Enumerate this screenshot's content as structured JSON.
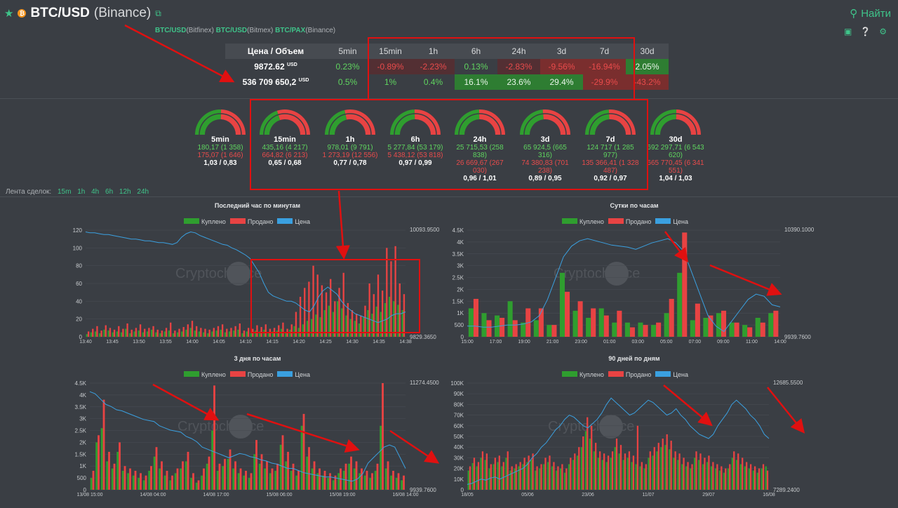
{
  "header": {
    "pair": "BTC/USD",
    "exchange": "(Binance)",
    "coin_glyph": "₿",
    "search_label": "Найти",
    "links": [
      {
        "pair": "BTC/USD",
        "exchange": "(Bitfinex)"
      },
      {
        "pair": "BTC/USD",
        "exchange": "(Bitmex)"
      },
      {
        "pair": "BTC/PAX",
        "exchange": "(Binance)"
      }
    ]
  },
  "stats": {
    "label_header": "Цена / Объем",
    "periods": [
      "5min",
      "15min",
      "1h",
      "6h",
      "24h",
      "3d",
      "7d",
      "30d"
    ],
    "price": "9872.62",
    "price_unit": "USD",
    "volume": "536 709 650,2",
    "volume_unit": "USD",
    "price_changes": [
      "0.23%",
      "-0.89%",
      "-2.23%",
      "0.13%",
      "-2.83%",
      "-9.56%",
      "-16.94%",
      "2.05%"
    ],
    "volume_changes": [
      "0.5%",
      "1%",
      "0.4%",
      "16.1%",
      "23.6%",
      "29.4%",
      "-29.9%",
      "-43.2%"
    ]
  },
  "gauges": [
    {
      "label": "5min",
      "buy": "180,17 (1 358)",
      "sell": "175,07 (1 646)",
      "ratio": "1,03 / 0,83",
      "buy_share": 0.51
    },
    {
      "label": "15min",
      "buy": "435,16 (4 217)",
      "sell": "664,82 (6 213)",
      "ratio": "0,65 / 0,68",
      "buy_share": 0.4
    },
    {
      "label": "1h",
      "buy": "978,01 (9 791)",
      "sell": "1 273,19 (12 556)",
      "ratio": "0,77 / 0,78",
      "buy_share": 0.43
    },
    {
      "label": "6h",
      "buy": "5 277,84 (53 179)",
      "sell": "5 438,12 (53 818)",
      "ratio": "0,97 / 0,99",
      "buy_share": 0.49
    },
    {
      "label": "24h",
      "buy": "25 715,53 (258 838)",
      "sell": "26 669,67 (267 030)",
      "ratio": "0,96 / 1,01",
      "buy_share": 0.49
    },
    {
      "label": "3d",
      "buy": "65 924,5 (665 316)",
      "sell": "74 380,83 (701 238)",
      "ratio": "0,89 / 0,95",
      "buy_share": 0.47
    },
    {
      "label": "7d",
      "buy": "124 717 (1 285 977)",
      "sell": "135 366,41 (1 328 487)",
      "ratio": "0,92 / 0,97",
      "buy_share": 0.48
    },
    {
      "label": "30d",
      "buy": "692 297,71 (6 543 620)",
      "sell": "665 770,45 (6 341 551)",
      "ratio": "1,04 / 1,03",
      "buy_share": 0.51
    }
  ],
  "feed": {
    "label": "Лента сделок:",
    "options": [
      "15m",
      "1h",
      "4h",
      "6h",
      "12h",
      "24h"
    ]
  },
  "legend": {
    "bought": "Куплено",
    "sold": "Продано",
    "price": "Цена"
  },
  "colors": {
    "bought": "#2f9e2f",
    "sold": "#e84343",
    "price": "#3aa0e0",
    "accent": "#3fc48a",
    "annotation": "#e01010"
  },
  "watermark": "Cryptochance",
  "chart_data": [
    {
      "type": "bar",
      "title": "Последний час по минутам",
      "yticks": [
        "0",
        "20",
        "40",
        "60",
        "80",
        "100",
        "120"
      ],
      "ylim": [
        0,
        120
      ],
      "price_top": "10093.9500",
      "price_bottom": "9829.3650",
      "xticks": [
        "13:40",
        "13:45",
        "13:50",
        "13:55",
        "14:00",
        "14:05",
        "14:10",
        "14:15",
        "14:20",
        "14:25",
        "14:30",
        "14:35",
        "14:38"
      ],
      "bought": [
        3,
        5,
        6,
        4,
        8,
        7,
        5,
        6,
        5,
        9,
        4,
        6,
        7,
        5,
        6,
        8,
        5,
        4,
        6,
        7,
        4,
        5,
        6,
        8,
        10,
        7,
        6,
        5,
        4,
        6,
        7,
        8,
        5,
        6,
        7,
        8,
        4,
        6,
        5,
        7,
        6,
        8,
        5,
        6,
        7,
        9,
        5,
        8,
        12,
        10,
        14,
        18,
        20,
        25,
        22,
        30,
        35,
        28,
        40,
        32,
        24,
        20,
        18,
        15,
        22,
        30,
        26,
        34,
        28,
        38,
        45,
        40,
        36,
        30
      ],
      "sold": [
        6,
        9,
        12,
        7,
        13,
        10,
        8,
        12,
        9,
        15,
        8,
        10,
        14,
        9,
        10,
        12,
        8,
        7,
        10,
        16,
        7,
        9,
        11,
        14,
        18,
        12,
        10,
        9,
        8,
        10,
        12,
        14,
        9,
        10,
        12,
        15,
        7,
        10,
        9,
        13,
        11,
        14,
        9,
        10,
        13,
        16,
        9,
        14,
        28,
        45,
        55,
        62,
        80,
        70,
        58,
        50,
        65,
        40,
        55,
        72,
        38,
        30,
        26,
        24,
        35,
        60,
        48,
        70,
        52,
        100,
        85,
        102,
        60,
        48
      ],
      "price": [
        118,
        117,
        117,
        116,
        115,
        115,
        114,
        113,
        112,
        111,
        110,
        110,
        109,
        108,
        108,
        107,
        106,
        106,
        105,
        104,
        106,
        112,
        116,
        118,
        117,
        114,
        112,
        110,
        108,
        106,
        104,
        103,
        100,
        98,
        95,
        92,
        88,
        80,
        72,
        60,
        50,
        46,
        44,
        42,
        40,
        40,
        38,
        34,
        30,
        28,
        35,
        45,
        52,
        56,
        52,
        48,
        40,
        34,
        30,
        26,
        24,
        22,
        20,
        18,
        16,
        18,
        20,
        24,
        26,
        26,
        28
      ],
      "price_max": 120
    },
    {
      "type": "bar",
      "title": "Сутки по часам",
      "yticks": [
        "0",
        "500",
        "1K",
        "1.5K",
        "2K",
        "2.5K",
        "3K",
        "3.5K",
        "4K",
        "4.5K"
      ],
      "ylim": [
        0,
        4500
      ],
      "price_top": "10390.1000",
      "price_bottom": "9939.7600",
      "xticks": [
        "15:00",
        "17:00",
        "19:00",
        "21:00",
        "23:00",
        "01:00",
        "03:00",
        "05:00",
        "07:00",
        "09:00",
        "11:00",
        "14:00"
      ],
      "bought": [
        1200,
        1000,
        900,
        1500,
        600,
        700,
        500,
        2700,
        1100,
        800,
        1200,
        600,
        600,
        600,
        500,
        1000,
        2700,
        700,
        800,
        1000,
        600,
        500,
        800,
        1000
      ],
      "sold": [
        1600,
        700,
        800,
        700,
        1200,
        1200,
        500,
        1900,
        1500,
        1200,
        900,
        1100,
        400,
        500,
        600,
        1600,
        4400,
        1400,
        900,
        1100,
        600,
        400,
        600,
        1100
      ],
      "price": [
        10,
        10,
        9,
        9,
        10,
        11,
        11,
        12,
        14,
        20,
        35,
        55,
        75,
        85,
        90,
        92,
        90,
        88,
        86,
        85,
        84,
        82,
        85,
        88,
        90,
        92,
        88,
        80,
        60,
        40,
        20,
        10,
        5,
        15,
        25,
        35,
        40,
        38,
        30,
        28
      ],
      "price_max": 100
    },
    {
      "type": "bar",
      "title": "3 дня по часам",
      "yticks": [
        "0",
        "500",
        "1K",
        "1.5K",
        "2K",
        "2.5K",
        "3K",
        "3.5K",
        "4K",
        "4.5K"
      ],
      "ylim": [
        0,
        4500
      ],
      "price_top": "11274.4500",
      "price_bottom": "9939.7600",
      "xticks": [
        "13/08 15:00",
        "14/08 04:00",
        "14/08 17:00",
        "15/08 06:00",
        "15/08 19:00",
        "16/08 14:00"
      ],
      "bought": [
        500,
        2000,
        2600,
        1200,
        900,
        1600,
        800,
        700,
        600,
        500,
        400,
        800,
        1400,
        900,
        600,
        400,
        700,
        900,
        1200,
        500,
        300,
        600,
        1100,
        2500,
        800,
        1000,
        1300,
        900,
        700,
        600,
        500,
        1500,
        1100,
        900,
        700,
        800,
        1900,
        1200,
        800,
        600,
        2700,
        1400,
        900,
        700,
        600,
        500,
        400,
        700,
        800,
        1100,
        900,
        700,
        600,
        500,
        800,
        2700,
        900,
        600,
        500,
        400
      ],
      "sold": [
        800,
        2300,
        3800,
        1600,
        1100,
        2000,
        1000,
        900,
        800,
        700,
        600,
        1000,
        1800,
        1200,
        800,
        600,
        900,
        1200,
        1600,
        700,
        400,
        900,
        1400,
        4400,
        1100,
        1300,
        1700,
        1200,
        900,
        800,
        700,
        2100,
        1500,
        1200,
        900,
        1100,
        2300,
        1600,
        1100,
        800,
        3200,
        1800,
        1200,
        900,
        800,
        700,
        600,
        900,
        1100,
        1400,
        1200,
        900,
        800,
        700,
        1100,
        4500,
        1200,
        800,
        700,
        600
      ],
      "price": [
        92,
        90,
        85,
        80,
        78,
        75,
        74,
        72,
        70,
        68,
        66,
        65,
        64,
        60,
        58,
        56,
        55,
        54,
        50,
        48,
        45,
        40,
        38,
        36,
        34,
        32,
        30,
        32,
        34,
        33,
        31,
        30,
        28,
        27,
        25,
        24,
        22,
        20,
        20,
        18,
        16,
        15,
        14,
        13,
        12,
        12,
        11,
        10,
        9,
        8,
        10,
        15,
        25,
        30,
        35,
        40,
        42,
        40,
        30,
        20
      ],
      "price_max": 100
    },
    {
      "type": "bar",
      "title": "90 дней по дням",
      "yticks": [
        "0",
        "10K",
        "20K",
        "30K",
        "40K",
        "50K",
        "60K",
        "70K",
        "80K",
        "90K",
        "100K"
      ],
      "ylim": [
        0,
        100000
      ],
      "price_top": "12685.5500",
      "price_bottom": "7289.2400",
      "xticks": [
        "18/05",
        "05/06",
        "23/06",
        "11/07",
        "29/07",
        "16/08"
      ],
      "bought": [
        18000,
        25000,
        22000,
        30000,
        28000,
        20000,
        24000,
        26000,
        22000,
        30000,
        18000,
        20000,
        22000,
        24000,
        26000,
        28000,
        18000,
        20000,
        24000,
        26000,
        22000,
        18000,
        20000,
        16000,
        24000,
        28000,
        32000,
        40000,
        55000,
        48000,
        36000,
        30000,
        28000,
        26000,
        30000,
        40000,
        34000,
        28000,
        30000,
        26000,
        24000,
        22000,
        20000,
        30000,
        32000,
        36000,
        40000,
        42000,
        38000,
        30000,
        28000,
        24000,
        22000,
        20000,
        30000,
        28000,
        24000,
        26000,
        22000,
        20000,
        18000,
        16000,
        20000,
        30000,
        28000,
        24000,
        22000,
        20000,
        18000,
        16000,
        20000,
        22000
      ],
      "sold": [
        22000,
        30000,
        26000,
        36000,
        34000,
        24000,
        30000,
        32000,
        26000,
        36000,
        22000,
        24000,
        26000,
        30000,
        32000,
        34000,
        22000,
        24000,
        30000,
        32000,
        26000,
        22000,
        24000,
        20000,
        30000,
        34000,
        40000,
        50000,
        68000,
        60000,
        44000,
        36000,
        34000,
        32000,
        36000,
        48000,
        42000,
        34000,
        36000,
        32000,
        60000,
        26000,
        24000,
        36000,
        40000,
        44000,
        48000,
        52000,
        46000,
        36000,
        34000,
        30000,
        26000,
        24000,
        36000,
        34000,
        30000,
        32000,
        26000,
        24000,
        22000,
        20000,
        24000,
        36000,
        34000,
        30000,
        26000,
        24000,
        22000,
        20000,
        24000,
        18000
      ],
      "price": [
        5,
        6,
        8,
        10,
        9,
        11,
        12,
        10,
        12,
        14,
        16,
        18,
        20,
        24,
        30,
        34,
        40,
        44,
        50,
        56,
        60,
        66,
        70,
        68,
        64,
        60,
        58,
        62,
        66,
        72,
        80,
        86,
        82,
        78,
        74,
        70,
        72,
        76,
        80,
        84,
        82,
        78,
        74,
        70,
        72,
        76,
        70,
        66,
        60,
        56,
        52,
        50,
        48,
        52,
        60,
        66,
        72,
        80,
        84,
        80,
        76,
        70,
        66,
        60,
        52,
        48
      ],
      "price_max": 100
    }
  ]
}
